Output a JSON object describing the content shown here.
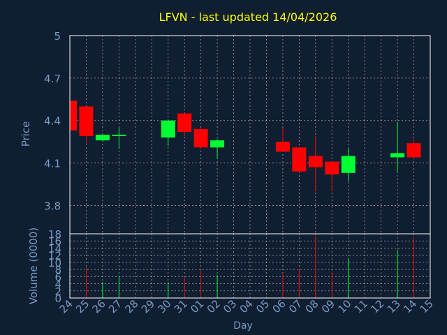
{
  "chart_data": {
    "type": "candlestick",
    "title": "LFVN - last updated 14/04/2026",
    "xlabel": "Day",
    "colors": {
      "background": "#0f1e30",
      "title": "#ffff00",
      "axis_text": "#7a9cc6",
      "frame": "#ffffff",
      "grid": "#ffffff",
      "up": "#00ff33",
      "down": "#ff0000"
    },
    "x_tick_labels": [
      "24",
      "25",
      "26",
      "27",
      "28",
      "29",
      "30",
      "31",
      "01",
      "02",
      "03",
      "04",
      "05",
      "06",
      "07",
      "08",
      "09",
      "10",
      "11",
      "12",
      "13",
      "14",
      "15"
    ],
    "price_panel": {
      "ylabel": "Price",
      "ylim": [
        3.6,
        5.0
      ],
      "y_ticks": [
        "3.8",
        "4.1",
        "4.4",
        "4.7",
        "5"
      ],
      "candles": [
        {
          "day": "24",
          "open": 4.54,
          "high": 4.54,
          "low": 4.33,
          "close": 4.33
        },
        {
          "day": "25",
          "open": 4.5,
          "high": 4.5,
          "low": 4.23,
          "close": 4.29
        },
        {
          "day": "26",
          "open": 4.26,
          "high": 4.3,
          "low": 4.26,
          "close": 4.3
        },
        {
          "day": "27",
          "open": 4.29,
          "high": 4.35,
          "low": 4.2,
          "close": 4.3
        },
        {
          "day": "30",
          "open": 4.28,
          "high": 4.4,
          "low": 4.22,
          "close": 4.4
        },
        {
          "day": "31",
          "open": 4.45,
          "high": 4.45,
          "low": 4.29,
          "close": 4.32
        },
        {
          "day": "01",
          "open": 4.34,
          "high": 4.35,
          "low": 4.2,
          "close": 4.21
        },
        {
          "day": "02",
          "open": 4.21,
          "high": 4.27,
          "low": 4.13,
          "close": 4.26
        },
        {
          "day": "06",
          "open": 4.25,
          "high": 4.35,
          "low": 4.18,
          "close": 4.18
        },
        {
          "day": "07",
          "open": 4.21,
          "high": 4.21,
          "low": 4.03,
          "close": 4.04
        },
        {
          "day": "08",
          "open": 4.15,
          "high": 4.29,
          "low": 3.9,
          "close": 4.07
        },
        {
          "day": "09",
          "open": 4.11,
          "high": 4.11,
          "low": 3.9,
          "close": 4.02
        },
        {
          "day": "10",
          "open": 4.03,
          "high": 4.2,
          "low": 3.97,
          "close": 4.15
        },
        {
          "day": "13",
          "open": 4.14,
          "high": 4.39,
          "low": 4.04,
          "close": 4.17
        },
        {
          "day": "14",
          "open": 4.24,
          "high": 4.27,
          "low": 4.13,
          "close": 4.14
        }
      ]
    },
    "volume_panel": {
      "ylabel": "Volume (0000)",
      "ylim": [
        0,
        18
      ],
      "y_ticks": [
        "0",
        "2",
        "4",
        "6",
        "8",
        "10",
        "12",
        "14",
        "16",
        "18"
      ],
      "bars": [
        {
          "day": "25",
          "value": 8.5,
          "direction": "down"
        },
        {
          "day": "26",
          "value": 4.5,
          "direction": "up"
        },
        {
          "day": "27",
          "value": 6.0,
          "direction": "up"
        },
        {
          "day": "30",
          "value": 4.5,
          "direction": "up"
        },
        {
          "day": "31",
          "value": 6.0,
          "direction": "down"
        },
        {
          "day": "01",
          "value": 8.0,
          "direction": "down"
        },
        {
          "day": "02",
          "value": 6.5,
          "direction": "up"
        },
        {
          "day": "06",
          "value": 7.0,
          "direction": "down"
        },
        {
          "day": "07",
          "value": 8.0,
          "direction": "down"
        },
        {
          "day": "08",
          "value": 17.5,
          "direction": "down"
        },
        {
          "day": "09",
          "value": 7.5,
          "direction": "down"
        },
        {
          "day": "10",
          "value": 11.0,
          "direction": "up"
        },
        {
          "day": "13",
          "value": 13.5,
          "direction": "up"
        },
        {
          "day": "14",
          "value": 17.0,
          "direction": "down"
        }
      ]
    }
  }
}
